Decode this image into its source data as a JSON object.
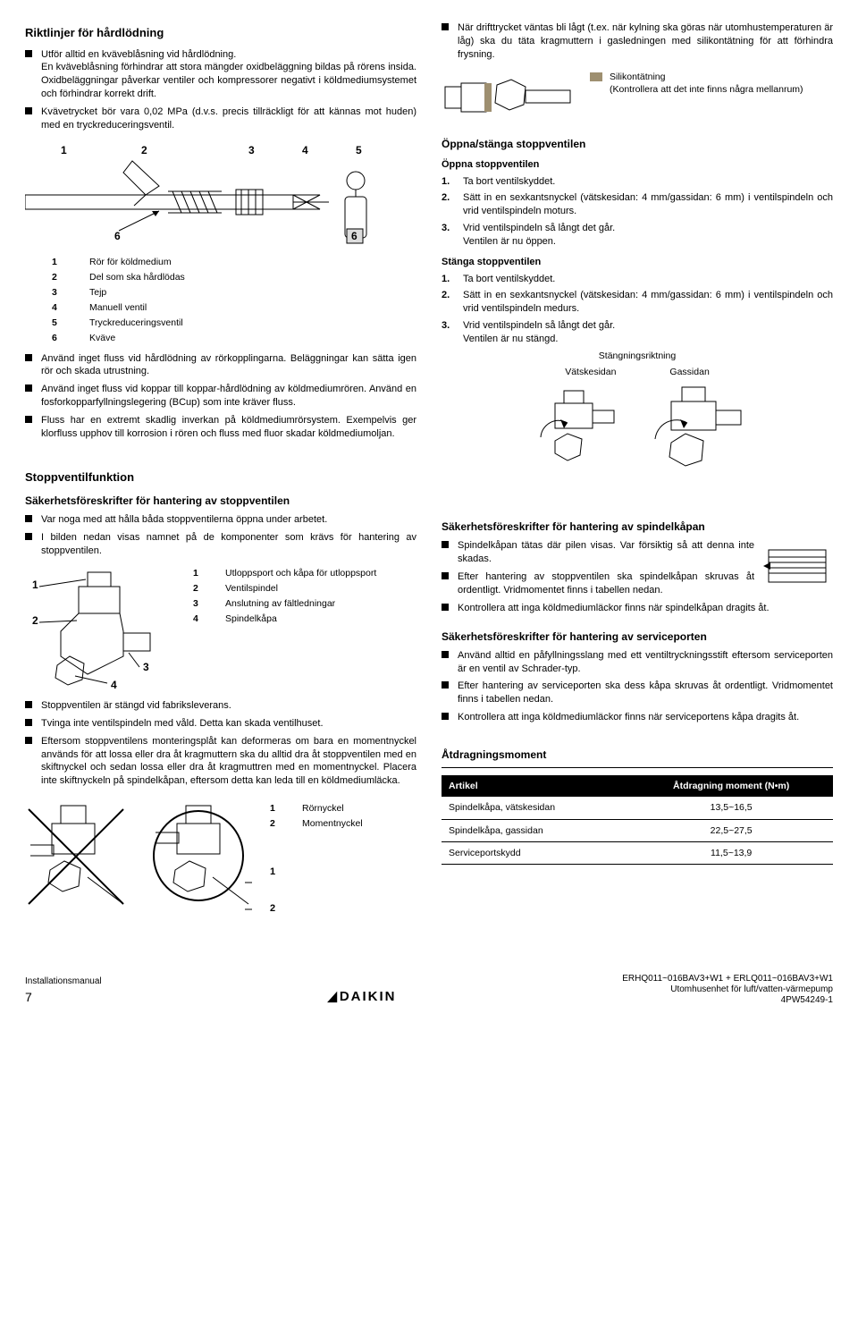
{
  "left": {
    "h_riktlinjer": "Riktlinjer för hårdlödning",
    "riktlinjer_bullets": [
      "Utför alltid en kväveblåsning vid hårdlödning.\nEn kväveblåsning förhindrar att stora mängder oxidbeläggning bildas på rörens insida. Oxidbeläggningar påverkar ventiler och kompressorer negativt i köldmediumsystemet och förhindrar korrekt drift.",
      "Kvävetrycket bör vara 0,02 MPa (d.v.s. precis tillräckligt för att kännas mot huden) med en tryckreduceringsventil."
    ],
    "fig1_labels": [
      "1",
      "2",
      "3",
      "4",
      "5",
      "6",
      "6"
    ],
    "fig1_legend": [
      {
        "k": "1",
        "v": "Rör för köldmedium"
      },
      {
        "k": "2",
        "v": "Del som ska hårdlödas"
      },
      {
        "k": "3",
        "v": "Tejp"
      },
      {
        "k": "4",
        "v": "Manuell ventil"
      },
      {
        "k": "5",
        "v": "Tryckreduceringsventil"
      },
      {
        "k": "6",
        "v": "Kväve"
      }
    ],
    "riktlinjer_bullets2": [
      "Använd inget fluss vid hårdlödning av rörkopplingarna. Beläggningar kan sätta igen rör och skada utrustning.",
      "Använd inget fluss vid koppar till koppar-hårdlödning av köldmediumrören. Använd en fosforkopparfyllningslegering (BCup) som inte kräver fluss.",
      "Fluss har en extremt skadlig inverkan på köldmediumrörsystem. Exempelvis ger klorfluss upphov till korrosion i rören och fluss med fluor skadar köldmediumoljan."
    ],
    "h_stoppventilfunktion": "Stoppventilfunktion",
    "h_sakerhet_stopp": "Säkerhetsföreskrifter för hantering av stoppventilen",
    "stopp_bullets1": [
      "Var noga med att hålla båda stoppventilerna öppna under arbetet.",
      "I bilden nedan visas namnet på de komponenter som krävs för hantering av stoppventilen."
    ],
    "fig2_legend": [
      {
        "k": "1",
        "v": "Utloppsport och kåpa för utloppsport"
      },
      {
        "k": "2",
        "v": "Ventilspindel"
      },
      {
        "k": "3",
        "v": "Anslutning av fältledningar"
      },
      {
        "k": "4",
        "v": "Spindelkåpa"
      }
    ],
    "stopp_bullets2": [
      "Stoppventilen är stängd vid fabriksleverans.",
      "Tvinga inte ventilspindeln med våld. Detta kan skada ventilhuset.",
      "Eftersom stoppventilens monteringsplåt kan deformeras om bara en momentnyckel används för att lossa eller dra åt kragmuttern ska du alltid dra åt stoppventilen med en skiftnyckel och sedan lossa eller dra åt kragmuttren med en momentnyckel. Placera inte skiftnyckeln på spindelkåpan, eftersom detta kan leda till en köldmediumläcka."
    ],
    "fig3_legend": [
      {
        "k": "1",
        "v": "Rörnyckel"
      },
      {
        "k": "2",
        "v": "Momentnyckel"
      }
    ]
  },
  "right": {
    "top_bullet": "När drifttrycket väntas bli lågt (t.ex. när kylning ska göras när utomhustemperaturen är låg) ska du täta kragmuttern i gasledningen med silikontätning för att förhindra frysning.",
    "sil_label": "Silikontätning",
    "sil_note": "(Kontrollera att det inte finns några mellanrum)",
    "h_oppna_stanga": "Öppna/stänga stoppventilen",
    "h_oppna": "Öppna stoppventilen",
    "oppna_steps": [
      "Ta bort ventilskyddet.",
      "Sätt in en sexkantsnyckel (vätskesidan: 4 mm/gassidan: 6 mm) i ventilspindeln och vrid ventilspindeln moturs.",
      "Vrid ventilspindeln så långt det går.\nVentilen är nu öppen."
    ],
    "h_stanga": "Stänga stoppventilen",
    "stanga_steps": [
      "Ta bort ventilskyddet.",
      "Sätt in en sexkantsnyckel (vätskesidan: 4 mm/gassidan: 6 mm) i ventilspindeln och vrid ventilspindeln medurs.",
      "Vrid ventilspindeln så långt det går.\nVentilen är nu stängd."
    ],
    "dir_title": "Stängningsriktning",
    "dir_l": "Vätskesidan",
    "dir_r": "Gassidan",
    "h_sakerhet_spindel": "Säkerhetsföreskrifter för hantering av spindelkåpan",
    "spindel_bullets": [
      "Spindelkåpan tätas där pilen visas. Var försiktig så att denna inte skadas.",
      "Efter hantering av stoppventilen ska spindelkåpan skruvas åt ordentligt. Vridmomentet finns i tabellen nedan.",
      "Kontrollera att inga köldmediumläckor finns när spindelkåpan dragits åt."
    ],
    "h_sakerhet_service": "Säkerhetsföreskrifter för hantering av serviceporten",
    "service_bullets": [
      "Använd alltid en påfyllningsslang med ett ventiltryckningsstift eftersom serviceporten är en ventil av Schrader-typ.",
      "Efter hantering av serviceporten ska dess kåpa skruvas åt ordentligt. Vridmomentet finns i tabellen nedan.",
      "Kontrollera att inga köldmediumläckor finns när serviceportens kåpa dragits åt."
    ],
    "h_torque": "Åtdragningsmoment",
    "torque_headers": [
      "Artikel",
      "Åtdragning moment (N•m)"
    ],
    "torque_rows": [
      [
        "Spindelkåpa, vätskesidan",
        "13,5~16,5"
      ],
      [
        "Spindelkåpa, gassidan",
        "22,5~27,5"
      ],
      [
        "Serviceportskydd",
        "11,5~13,9"
      ]
    ]
  },
  "footer": {
    "left1": "Installationsmanual",
    "left_page": "7",
    "brand": "DAIKIN",
    "r1": "ERHQ011~016BAV3+W1 + ERLQ011~016BAV3+W1",
    "r2": "Utomhusenhet för luft/vatten-värmepump",
    "r3": "4PW54249-1"
  },
  "colors": {
    "silicone": "#9e8f70"
  }
}
